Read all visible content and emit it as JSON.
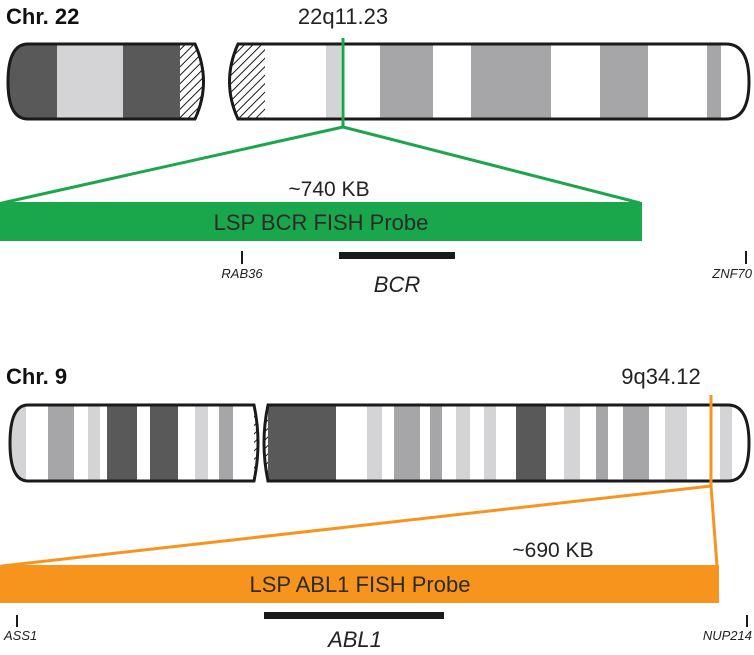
{
  "colors": {
    "chr22_probe": "#1aa64a",
    "chr9_probe": "#f7941d",
    "outline": "#1a1a1a",
    "dark_band": "#595959",
    "mid_band": "#a6a6a8",
    "light_band": "#d4d4d6",
    "white_band": "#ffffff",
    "gene_bar": "#1a1a1a"
  },
  "chr22": {
    "title": "Chr. 22",
    "band_label": "22q11.23",
    "size_label": "~740 KB",
    "probe_label": "LSP BCR FISH Probe",
    "gene": "BCR",
    "marker_left": "RAB36",
    "marker_right": "ZNF70"
  },
  "chr9": {
    "title": "Chr. 9",
    "band_label": "9q34.12",
    "size_label": "~690 KB",
    "probe_label": "LSP ABL1 FISH Probe",
    "gene": "ABL1",
    "marker_left": "ASS1",
    "marker_right": "NUP214"
  }
}
